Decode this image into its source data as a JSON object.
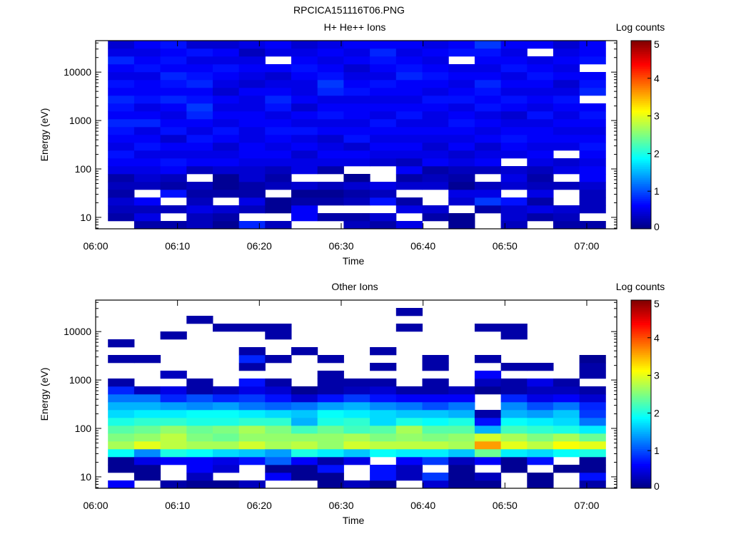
{
  "title": "RPCICA151116T06.PNG",
  "chart_data": [
    {
      "type": "heatmap",
      "title": "H+ He++ Ions",
      "xlabel": "Time",
      "ylabel": "Energy (eV)",
      "colorbar_label": "Log counts",
      "colorbar_ticks": [
        "0",
        "1",
        "2",
        "3",
        "4",
        "5"
      ],
      "z_range": [
        0,
        5
      ],
      "colormap": "jet",
      "y_scale": "log",
      "y_range_ev": [
        5.8,
        44700
      ],
      "y_ticks": [
        "10",
        "100",
        "1000",
        "10000"
      ],
      "x_range": [
        "06:00:00",
        "07:03:40"
      ],
      "x_ticks": [
        "06:00",
        "06:10",
        "06:20",
        "06:30",
        "06:40",
        "06:50",
        "07:00"
      ],
      "time_bin_start": "06:01:30",
      "time_bin_width_s": 192,
      "energy_bins": 24,
      "z": [
        [
          null,
          0.2,
          0.3,
          0.4,
          0.2,
          0.3,
          0.2,
          0.5,
          0.6,
          0.7,
          0.5,
          0.6,
          0.7,
          0.8,
          0.6,
          0.7,
          0.8,
          0.6,
          0.7,
          0.5,
          0.6,
          0.8,
          0.5,
          0.4
        ],
        [
          0.2,
          0.5,
          0.3,
          0.6,
          null,
          0.3,
          0.4,
          0.5,
          0.6,
          0.5,
          0.7,
          0.6,
          0.5,
          0.8,
          0.6,
          0.5,
          0.7,
          0.6,
          0.6,
          0.5,
          0.7,
          0.6,
          0.5,
          0.6
        ],
        [
          0.2,
          null,
          0.3,
          null,
          0.7,
          0.2,
          0.3,
          0.6,
          0.7,
          0.5,
          0.6,
          0.4,
          0.7,
          0.6,
          0.5,
          0.6,
          0.8,
          0.6,
          0.7,
          0.8,
          0.6,
          0.7,
          0.6,
          0.7
        ],
        [
          0.3,
          0.3,
          0.5,
          0.3,
          0.2,
          0.3,
          null,
          0.3,
          0.6,
          0.5,
          0.6,
          0.7,
          0.5,
          0.6,
          0.8,
          0.9,
          0.7,
          0.6,
          0.8,
          0.7,
          0.6,
          0.5,
          0.7,
          0.4
        ],
        [
          0.1,
          0.2,
          0.4,
          null,
          0.2,
          0.1,
          0.1,
          0.4,
          0.6,
          0.5,
          0.4,
          0.6,
          0.7,
          0.5,
          0.6,
          0.5,
          0.6,
          0.4,
          0.5,
          0.6,
          0.7,
          0.5,
          0.6,
          0.4
        ],
        [
          0.8,
          null,
          0.3,
          0.5,
          0.2,
          0.2,
          0.4,
          0.4,
          0.5,
          0.6,
          0.6,
          0.5,
          0.5,
          0.6,
          0.6,
          0.5,
          0.5,
          0.6,
          0.4,
          0.5,
          0.6,
          0.5,
          0.3,
          0.5
        ],
        [
          0.3,
          null,
          0.1,
          0.1,
          null,
          0.3,
          0.2,
          0.3,
          0.5,
          0.6,
          0.5,
          0.6,
          0.7,
          0.6,
          0.5,
          0.7,
          0.8,
          0.6,
          0.5,
          0.4,
          0.6,
          null,
          0.5,
          0.6
        ],
        [
          null,
          0.6,
          0.6,
          0.2,
          0.1,
          0.4,
          null,
          0.5,
          0.5,
          0.4,
          0.6,
          0.5,
          0.7,
          0.5,
          0.6,
          0.4,
          0.6,
          0.5,
          0.5,
          0.6,
          0.7,
          0.6,
          0.5,
          0.4
        ],
        [
          null,
          0.2,
          null,
          0.2,
          0.1,
          0.3,
          null,
          0.2,
          0.5,
          0.6,
          0.5,
          0.4,
          0.6,
          0.5,
          0.7,
          0.6,
          0.5,
          0.8,
          0.9,
          0.7,
          0.6,
          0.5,
          0.6,
          0.5
        ],
        [
          0.3,
          0.2,
          null,
          0.3,
          0.2,
          0.4,
          0.1,
          null,
          0.5,
          0.6,
          0.4,
          0.7,
          0.6,
          0.5,
          0.6,
          0.6,
          0.5,
          0.7,
          0.6,
          0.5,
          0.4,
          0.6,
          0.5,
          0.6
        ],
        [
          0.2,
          0.4,
          null,
          0.7,
          0.3,
          0.5,
          null,
          null,
          0.4,
          0.5,
          0.6,
          0.5,
          0.6,
          0.7,
          0.5,
          0.6,
          0.5,
          0.6,
          0.7,
          0.5,
          0.6,
          0.7,
          0.8,
          0.6
        ],
        [
          0.5,
          null,
          0.5,
          0.2,
          null,
          0.4,
          0.2,
          0.6,
          0.3,
          0.5,
          0.6,
          0.5,
          0.6,
          0.5,
          0.7,
          0.6,
          0.5,
          0.6,
          0.6,
          0.8,
          0.7,
          0.6,
          0.5,
          0.6
        ],
        [
          null,
          0.2,
          0.4,
          null,
          null,
          0.4,
          0.3,
          0.2,
          0.6,
          0.5,
          0.4,
          0.5,
          0.6,
          0.5,
          0.5,
          0.6,
          0.7,
          0.5,
          0.6,
          0.7,
          0.6,
          0.5,
          0.6,
          0.5
        ],
        [
          0.1,
          0.1,
          null,
          0.4,
          0.5,
          0.1,
          0.2,
          0.3,
          0.5,
          0.4,
          0.6,
          0.5,
          0.6,
          0.7,
          0.6,
          0.5,
          0.7,
          0.6,
          0.5,
          0.6,
          0.5,
          null,
          0.7,
          0.6
        ],
        [
          null,
          null,
          0.2,
          0.9,
          0.5,
          0.3,
          null,
          0.3,
          0.6,
          0.5,
          0.4,
          0.6,
          0.5,
          0.6,
          0.5,
          0.7,
          0.6,
          0.7,
          0.8,
          0.6,
          0.5,
          0.6,
          0.7,
          0.9
        ],
        [
          0.3,
          0.4,
          0.4,
          0.7,
          null,
          0.4,
          0.5,
          0.4,
          null,
          0.5,
          0.6,
          0.7,
          0.6,
          0.5,
          0.4,
          0.6,
          0.7,
          0.5,
          0.6,
          0.5,
          0.7,
          0.6,
          0.5,
          0.6
        ],
        [
          null,
          0.2,
          0.5,
          0.2,
          0.5,
          0.3,
          0.2,
          0.3,
          0.5,
          0.6,
          0.5,
          0.6,
          0.6,
          0.5,
          0.7,
          0.5,
          0.6,
          0.5,
          0.6,
          0.7,
          0.6,
          0.5,
          null,
          0.6
        ],
        [
          0.2,
          0.3,
          0.4,
          null,
          null,
          0.3,
          null,
          0.5,
          0.4,
          null,
          0.5,
          0.6,
          0.5,
          0.6,
          0.5,
          0.6,
          0.7,
          0.5,
          0.4,
          0.6,
          0.5,
          0.6,
          0.5,
          0.4
        ],
        [
          0.2,
          null,
          0.3,
          0.3,
          0.3,
          0.4,
          0.6,
          0.6,
          0.5,
          0.6,
          0.7,
          0.6,
          0.5,
          0.6,
          0.7,
          0.6,
          null,
          0.8,
          0.7,
          0.6,
          null,
          0.7,
          0.6,
          0.6
        ]
      ]
    },
    {
      "type": "heatmap",
      "title": "Other Ions",
      "xlabel": "Time",
      "ylabel": "Energy (eV)",
      "colorbar_label": "Log counts",
      "colorbar_ticks": [
        "0",
        "1",
        "2",
        "3",
        "4",
        "5"
      ],
      "z_range": [
        0,
        5
      ],
      "colormap": "jet",
      "y_scale": "log",
      "y_range_ev": [
        5.8,
        44700
      ],
      "y_ticks": [
        "10",
        "100",
        "1000",
        "10000"
      ],
      "x_range": [
        "06:00:00",
        "07:03:40"
      ],
      "x_ticks": [
        "06:00",
        "06:10",
        "06:20",
        "06:30",
        "06:40",
        "06:50",
        "07:00"
      ],
      "time_bin_start": "06:01:30",
      "time_bin_width_s": 192,
      "energy_bins": 24,
      "z": [
        [
          0.6,
          null,
          0.1,
          0.1,
          1.9,
          2.7,
          2.5,
          2.3,
          2.0,
          1.7,
          1.5,
          1.2,
          0.8,
          0.2,
          null,
          null,
          0.2,
          null,
          0.2,
          null,
          null,
          null,
          null,
          null
        ],
        [
          null,
          0.1,
          0.1,
          0.5,
          1.3,
          3.0,
          2.6,
          2.4,
          2.1,
          1.8,
          1.5,
          1.2,
          0.3,
          null,
          null,
          null,
          0.2,
          null,
          null,
          null,
          null,
          null,
          null,
          null
        ],
        [
          0.2,
          null,
          null,
          0.6,
          2.0,
          2.8,
          2.8,
          2.6,
          2.1,
          1.8,
          1.4,
          0.8,
          0.5,
          null,
          0.3,
          null,
          null,
          null,
          null,
          0.2,
          null,
          null,
          null,
          null
        ],
        [
          0.1,
          0.3,
          0.6,
          0.6,
          1.9,
          2.7,
          2.5,
          2.4,
          2.0,
          1.9,
          1.3,
          1.0,
          0.2,
          0.2,
          null,
          null,
          null,
          null,
          null,
          null,
          null,
          0.2,
          null,
          null
        ],
        [
          0.1,
          null,
          0.4,
          0.5,
          1.7,
          2.7,
          2.4,
          2.5,
          2.0,
          1.9,
          1.4,
          0.8,
          0.3,
          null,
          null,
          null,
          null,
          null,
          null,
          null,
          0.2,
          null,
          null,
          null
        ],
        [
          0.3,
          null,
          null,
          0.7,
          1.6,
          2.9,
          2.6,
          2.7,
          2.1,
          1.8,
          1.2,
          0.9,
          0.5,
          0.7,
          null,
          0.2,
          0.8,
          0.2,
          null,
          null,
          0.2,
          null,
          null,
          null
        ],
        [
          null,
          0.6,
          0.1,
          1.1,
          1.4,
          2.7,
          2.6,
          2.5,
          2.1,
          1.7,
          1.1,
          0.7,
          0.4,
          0.2,
          null,
          null,
          0.2,
          null,
          null,
          0.2,
          0.2,
          null,
          null,
          null
        ],
        [
          null,
          0.1,
          0.1,
          0.6,
          2.0,
          2.8,
          2.6,
          2.2,
          1.5,
          1.6,
          1.2,
          0.4,
          0.1,
          null,
          null,
          null,
          null,
          0.2,
          null,
          null,
          null,
          null,
          null,
          null
        ],
        [
          0.1,
          0.1,
          0.7,
          0.2,
          1.8,
          2.6,
          2.6,
          2.4,
          2.0,
          1.9,
          1.4,
          0.7,
          0.2,
          0.2,
          0.2,
          null,
          0.2,
          null,
          null,
          null,
          null,
          null,
          null,
          null
        ],
        [
          0.3,
          null,
          null,
          0.5,
          1.6,
          2.9,
          2.7,
          2.2,
          2.1,
          1.8,
          1.5,
          0.9,
          0.3,
          0.2,
          null,
          null,
          null,
          null,
          null,
          null,
          null,
          null,
          null,
          null
        ],
        [
          0.1,
          0.7,
          0.7,
          null,
          1.9,
          2.8,
          2.5,
          2.3,
          1.7,
          1.7,
          1.3,
          0.7,
          0.4,
          0.2,
          null,
          0.2,
          null,
          0.2,
          null,
          null,
          null,
          null,
          null,
          null
        ],
        [
          null,
          0.3,
          0.3,
          0.6,
          1.8,
          2.8,
          2.6,
          2.7,
          2.0,
          1.6,
          1.2,
          0.6,
          0.2,
          null,
          null,
          null,
          null,
          null,
          null,
          null,
          0.2,
          null,
          0.2,
          null
        ],
        [
          0.4,
          0.9,
          null,
          0.9,
          1.8,
          2.8,
          2.5,
          2.3,
          1.9,
          1.6,
          1.0,
          0.6,
          0.2,
          0.2,
          null,
          0.2,
          0.2,
          null,
          null,
          null,
          null,
          null,
          null,
          null
        ],
        [
          0.1,
          0.1,
          0.1,
          0.3,
          1.6,
          2.7,
          2.6,
          2.3,
          2.0,
          1.5,
          1.2,
          0.6,
          0.3,
          null,
          null,
          null,
          null,
          null,
          null,
          null,
          null,
          null,
          null,
          null
        ],
        [
          0.1,
          0.3,
          null,
          0.6,
          2.4,
          3.6,
          2.9,
          1.5,
          0.7,
          0.2,
          null,
          null,
          0.1,
          0.3,
          0.6,
          null,
          0.2,
          null,
          null,
          null,
          0.2,
          null,
          null,
          null
        ],
        [
          null,
          null,
          0.1,
          0.1,
          1.8,
          3.0,
          2.7,
          2.2,
          1.9,
          1.5,
          1.3,
          0.8,
          0.2,
          0.2,
          null,
          0.2,
          null,
          null,
          null,
          0.2,
          0.2,
          null,
          null,
          null
        ],
        [
          0.1,
          0.1,
          null,
          0.7,
          1.7,
          2.8,
          2.5,
          2.1,
          1.8,
          1.4,
          1.0,
          0.5,
          0.3,
          0.5,
          null,
          0.2,
          null,
          null,
          null,
          null,
          null,
          null,
          null,
          null
        ],
        [
          null,
          null,
          0.1,
          null,
          1.9,
          3.1,
          2.7,
          2.0,
          1.7,
          1.6,
          1.2,
          0.6,
          0.3,
          0.2,
          null,
          null,
          null,
          null,
          null,
          null,
          null,
          null,
          null,
          null
        ],
        [
          0.2,
          0.7,
          0.1,
          0.1,
          2.0,
          3.0,
          2.4,
          1.8,
          1.2,
          0.9,
          0.8,
          0.4,
          0.2,
          null,
          0.2,
          0.2,
          0.1,
          null,
          null,
          null,
          null,
          null,
          null,
          null
        ]
      ]
    }
  ]
}
